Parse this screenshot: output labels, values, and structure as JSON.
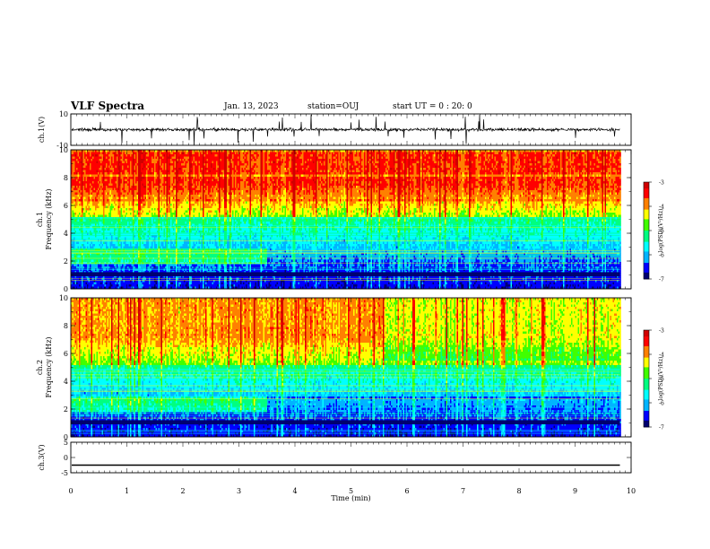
{
  "header": {
    "title": "VLF Spectra",
    "date": "Jan. 13, 2023",
    "station": "station=OUJ",
    "start": "start UT = 0 : 20: 0"
  },
  "chart_data": [
    {
      "type": "line",
      "panel": "ch1-waveform",
      "ylabel": "ch.1(V)",
      "ylim": [
        -10,
        10
      ],
      "yticks": [
        "10",
        "-10"
      ],
      "xlim": [
        0,
        10
      ],
      "baseline": 0,
      "series_color": "#000000",
      "note_values": "noisy waveform near 0 V with sporadic spikes to about +/-10 V"
    },
    {
      "type": "heatmap",
      "panel": "ch1-spectrogram",
      "ylabel": "Frequency (kHz)",
      "ylabel_prefix": "ch.1",
      "ylim": [
        0,
        10
      ],
      "yticks": [
        "0",
        "2",
        "4",
        "6",
        "8",
        "10"
      ],
      "xlim": [
        0,
        10
      ],
      "data_end_min": 9.8,
      "colorbar": {
        "label": "log(PSD)(V²/Hz)",
        "range": [
          -7,
          -3
        ],
        "ticks": [
          "-3",
          "-4",
          "-5",
          "-6",
          "-7"
        ]
      },
      "hiss_band_khz": [
        1.8,
        3.0
      ],
      "hiss_end_min": 3.5
    },
    {
      "type": "heatmap",
      "panel": "ch2-spectrogram",
      "ylabel": "Frequency (kHz)",
      "ylabel_prefix": "ch.2",
      "ylim": [
        0,
        10
      ],
      "yticks": [
        "0",
        "2",
        "4",
        "6",
        "8",
        "10"
      ],
      "xlim": [
        0,
        10
      ],
      "data_end_min": 9.8,
      "colorbar": {
        "label": "log(PSD)(V²/Hz)",
        "range": [
          -7,
          -3
        ],
        "ticks": [
          "-3",
          "-4",
          "-5",
          "-6",
          "-7"
        ]
      },
      "hiss_band_khz": [
        1.8,
        3.0
      ],
      "hiss_end_min": 3.5
    },
    {
      "type": "line",
      "panel": "ch3-waveform",
      "ylabel": "ch.3(V)",
      "ylim": [
        -5,
        5
      ],
      "yticks": [
        "5",
        "0",
        "-5"
      ],
      "xlim": [
        0,
        10
      ],
      "data_end_min": 9.8,
      "constant_value": -2.5,
      "series_color": "#000000"
    }
  ],
  "x_axis": {
    "label": "Time (min)",
    "ticks": [
      "0",
      "1",
      "2",
      "3",
      "4",
      "5",
      "6",
      "7",
      "8",
      "9",
      "10"
    ]
  },
  "colormap": [
    "#000070",
    "#0000ff",
    "#00b4ff",
    "#00ffff",
    "#00ff80",
    "#40ff00",
    "#ffff00",
    "#ff8000",
    "#ff0000",
    "#d00000",
    "#ffffff"
  ]
}
